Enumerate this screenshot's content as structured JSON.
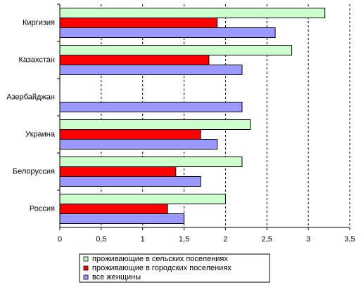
{
  "chart_data": {
    "type": "hbar",
    "categories": [
      "Киргизия",
      "Казахстан",
      "Азербайджан",
      "Украина",
      "Белоруссия",
      "Россия"
    ],
    "series": [
      {
        "name": "проживающие в сельских поселениях",
        "color": "#ccffcc",
        "values": [
          3.2,
          2.8,
          null,
          2.3,
          2.2,
          2.0
        ]
      },
      {
        "name": "проживающие в городских поселениях",
        "color": "#ff0000",
        "values": [
          1.9,
          1.8,
          null,
          1.7,
          1.4,
          1.3
        ]
      },
      {
        "name": "все женщины",
        "color": "#9999ff",
        "values": [
          2.6,
          2.2,
          2.2,
          1.9,
          1.7,
          1.5
        ]
      }
    ],
    "xlim": [
      0,
      3.5
    ],
    "xticks": [
      0,
      {
        "value": 0.5,
        "label": "0,5"
      },
      1,
      {
        "value": 1.5,
        "label": "1,5"
      },
      2,
      {
        "value": 2.5,
        "label": "2,5"
      },
      3,
      {
        "value": 3.5,
        "label": "3,5"
      }
    ],
    "grid": true,
    "legend": "bottom"
  }
}
